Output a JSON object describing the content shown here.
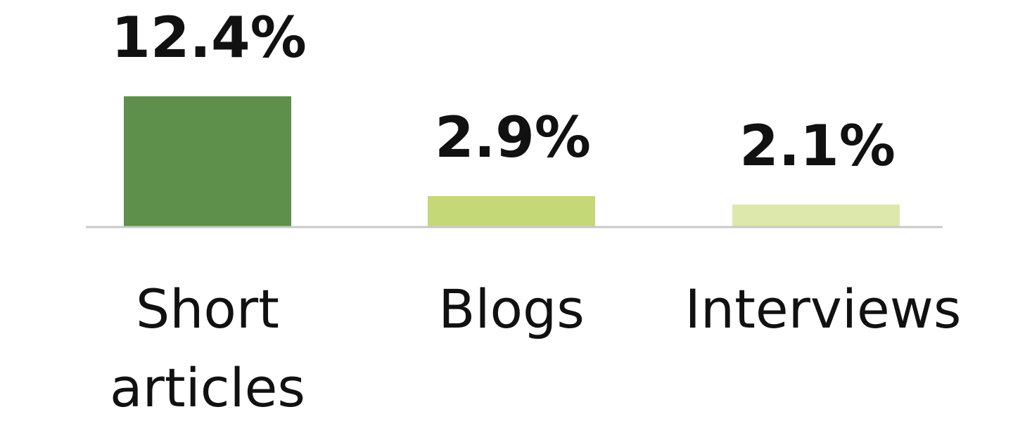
{
  "chart_data": {
    "type": "bar",
    "title": "",
    "xlabel": "",
    "ylabel": "",
    "categories": [
      "Short articles",
      "Blogs",
      "Interviews"
    ],
    "category_lines": [
      [
        "Short",
        "articles"
      ],
      [
        "Blogs"
      ],
      [
        "Interviews"
      ]
    ],
    "values": [
      12.4,
      2.9,
      2.1
    ],
    "value_labels": [
      "12.4%",
      "2.9%",
      "2.1%"
    ],
    "unit": "%",
    "ylim": [
      0,
      12.4
    ],
    "grid": false,
    "legend": "none",
    "colors": [
      "#5e8f4b",
      "#c5d878",
      "#dde8ad"
    ],
    "axis_color": "#c8c8c8"
  }
}
